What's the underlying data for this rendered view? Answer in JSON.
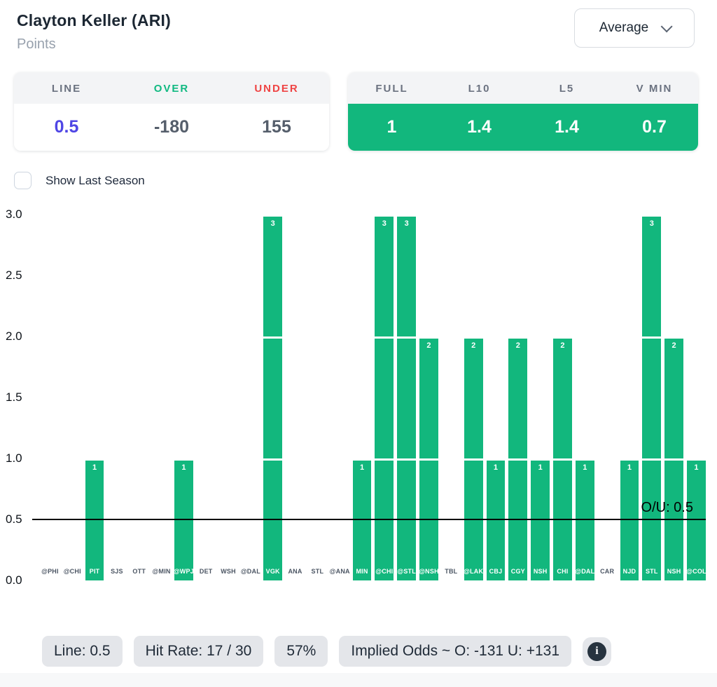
{
  "header": {
    "player": "Clayton Keller (ARI)",
    "stat": "Points",
    "dropdown_value": "Average"
  },
  "odds_panel": {
    "headers": [
      "LINE",
      "OVER",
      "UNDER"
    ],
    "values": [
      "0.5",
      "-180",
      "155"
    ]
  },
  "averages_panel": {
    "headers": [
      "FULL",
      "L10",
      "L5",
      "V MIN"
    ],
    "values": [
      "1",
      "1.4",
      "1.4",
      "0.7"
    ]
  },
  "controls": {
    "show_last_season_label": "Show Last Season",
    "show_last_season_checked": false
  },
  "chart_data": {
    "type": "bar",
    "title": "Clayton Keller (ARI) Points by game",
    "categories": [
      "@PHI",
      "@CHI",
      "PIT",
      "SJS",
      "OTT",
      "@MIN",
      "@WPJ",
      "DET",
      "WSH",
      "@DAL",
      "VGK",
      "ANA",
      "STL",
      "@ANA",
      "MIN",
      "@CHI",
      "@STL",
      "@NSH",
      "TBL",
      "@LAK",
      "CBJ",
      "CGY",
      "NSH",
      "CHI",
      "@DAL",
      "CAR",
      "NJD",
      "STL",
      "NSH",
      "@COL"
    ],
    "values": [
      0,
      0,
      1,
      0,
      0,
      0,
      1,
      0,
      0,
      0,
      3,
      0,
      0,
      0,
      1,
      3,
      3,
      2,
      0,
      2,
      1,
      2,
      1,
      2,
      1,
      0,
      1,
      3,
      2,
      1
    ],
    "xlabel": "",
    "ylabel": "",
    "ylim": [
      0,
      3
    ],
    "y_ticks": [
      "3.0",
      "2.5",
      "2.0",
      "1.5",
      "1.0",
      "0.5",
      "0.0"
    ],
    "grid": false,
    "bar_color": "#12b77d",
    "ou_line": {
      "value": 0.5,
      "label": "O/U: 0.5"
    }
  },
  "footer": {
    "badges": [
      "Line: 0.5",
      "Hit Rate: 17 / 30",
      "57%",
      "Implied Odds ~ O: -131 U: +131"
    ],
    "info_icon": "info-icon"
  },
  "colors": {
    "accent_green": "#12b77d",
    "over_green": "#10b981",
    "under_red": "#ef4444",
    "line_blue": "#4f46e5"
  }
}
